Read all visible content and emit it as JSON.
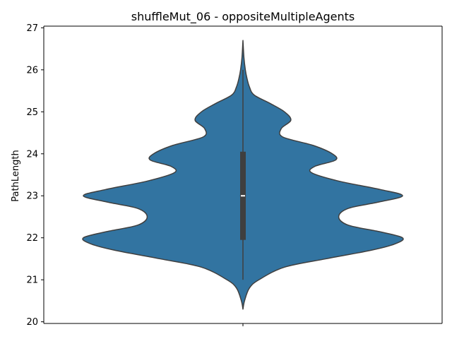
{
  "chart_data": {
    "type": "violin",
    "title": "shuffleMut_06 - oppositeMultipleAgents",
    "xlabel": "",
    "ylabel": "PathLength",
    "ylim": [
      20,
      27
    ],
    "yticks": [
      20,
      21,
      22,
      23,
      24,
      25,
      26,
      27
    ],
    "grid": false,
    "series": [
      {
        "density_y": [
          20.3,
          20.5,
          20.8,
          21.0,
          21.3,
          21.5,
          21.7,
          21.85,
          22.0,
          22.15,
          22.3,
          22.5,
          22.7,
          22.85,
          23.0,
          23.15,
          23.35,
          23.55,
          23.7,
          23.85,
          24.0,
          24.2,
          24.4,
          24.6,
          24.8,
          25.0,
          25.2,
          25.4,
          25.6,
          25.8,
          26.0,
          26.3,
          26.7
        ],
        "density_width": [
          0.0,
          0.01,
          0.04,
          0.1,
          0.26,
          0.52,
          0.8,
          0.95,
          1.0,
          0.85,
          0.66,
          0.6,
          0.66,
          0.85,
          1.0,
          0.86,
          0.6,
          0.43,
          0.45,
          0.58,
          0.56,
          0.44,
          0.25,
          0.24,
          0.3,
          0.26,
          0.17,
          0.07,
          0.04,
          0.025,
          0.015,
          0.006,
          0.0
        ],
        "whisker": [
          21.0,
          26.0
        ],
        "quartiles": [
          21.95,
          24.05
        ],
        "median": 23.0,
        "color": "#3274a1",
        "edge_color": "#3f3f3f"
      }
    ]
  }
}
